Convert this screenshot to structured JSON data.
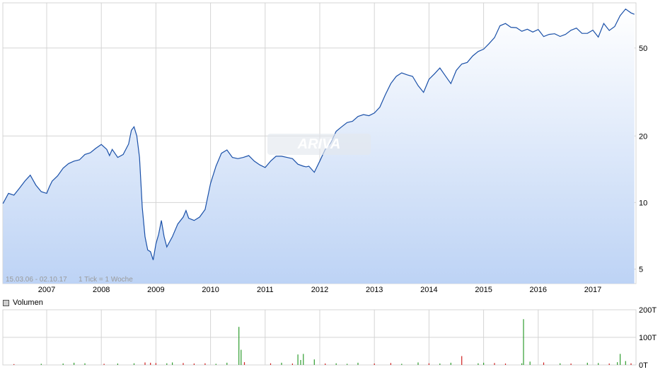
{
  "chart_data": [
    {
      "type": "area",
      "scale": "log",
      "period_label": "15.03.06 - 02.10.17",
      "interval_label": "1 Tick = 1 Woche",
      "watermark": "ARIVA",
      "x_tick_labels": [
        "2007",
        "2008",
        "2009",
        "2010",
        "2011",
        "2012",
        "2013",
        "2014",
        "2015",
        "2016",
        "2017"
      ],
      "y_tick_labels": [
        "5",
        "10",
        "20",
        "50"
      ],
      "y_ticks": [
        5,
        10,
        20,
        50
      ],
      "ylim": [
        4.3,
        80
      ],
      "xlim": [
        2006.2,
        2017.76
      ],
      "grid": true,
      "colors": {
        "line": "#1a50a8",
        "fill_top": "#ffffff",
        "fill_bottom": "#bdd3f5"
      },
      "x": [
        2006.2,
        2006.3,
        2006.4,
        2006.5,
        2006.6,
        2006.7,
        2006.8,
        2006.9,
        2007.0,
        2007.05,
        2007.1,
        2007.2,
        2007.3,
        2007.4,
        2007.5,
        2007.6,
        2007.7,
        2007.8,
        2007.9,
        2008.0,
        2008.1,
        2008.15,
        2008.2,
        2008.3,
        2008.4,
        2008.5,
        2008.55,
        2008.6,
        2008.65,
        2008.7,
        2008.75,
        2008.8,
        2008.85,
        2008.9,
        2008.95,
        2009.0,
        2009.05,
        2009.1,
        2009.15,
        2009.2,
        2009.3,
        2009.4,
        2009.5,
        2009.55,
        2009.6,
        2009.7,
        2009.8,
        2009.9,
        2010.0,
        2010.1,
        2010.2,
        2010.3,
        2010.4,
        2010.5,
        2010.6,
        2010.7,
        2010.8,
        2010.9,
        2011.0,
        2011.1,
        2011.2,
        2011.3,
        2011.4,
        2011.5,
        2011.6,
        2011.7,
        2011.75,
        2011.8,
        2011.9,
        2012.0,
        2012.1,
        2012.2,
        2012.3,
        2012.4,
        2012.5,
        2012.6,
        2012.7,
        2012.8,
        2012.9,
        2013.0,
        2013.1,
        2013.2,
        2013.3,
        2013.4,
        2013.5,
        2013.6,
        2013.7,
        2013.8,
        2013.9,
        2014.0,
        2014.1,
        2014.2,
        2014.3,
        2014.4,
        2014.5,
        2014.6,
        2014.7,
        2014.8,
        2014.9,
        2015.0,
        2015.1,
        2015.2,
        2015.3,
        2015.4,
        2015.5,
        2015.6,
        2015.7,
        2015.8,
        2015.9,
        2016.0,
        2016.1,
        2016.2,
        2016.3,
        2016.4,
        2016.5,
        2016.6,
        2016.7,
        2016.8,
        2016.9,
        2017.0,
        2017.1,
        2017.2,
        2017.3,
        2017.4,
        2017.5,
        2017.6,
        2017.7,
        2017.76
      ],
      "y": [
        9.9,
        11.0,
        10.8,
        11.6,
        12.5,
        13.3,
        12.0,
        11.2,
        11.0,
        11.8,
        12.5,
        13.2,
        14.3,
        15.0,
        15.4,
        15.6,
        16.5,
        16.8,
        17.6,
        18.3,
        17.4,
        16.3,
        17.4,
        16.0,
        16.5,
        18.4,
        21.2,
        22.0,
        20.0,
        16.0,
        9.5,
        7.0,
        6.1,
        6.0,
        5.5,
        6.5,
        7.2,
        8.3,
        7.0,
        6.3,
        7.0,
        8.0,
        8.6,
        9.2,
        8.5,
        8.3,
        8.6,
        9.3,
        12.2,
        14.6,
        16.7,
        17.3,
        16.0,
        15.8,
        16.0,
        16.3,
        15.4,
        14.8,
        14.4,
        15.4,
        16.2,
        16.2,
        16.0,
        15.8,
        14.9,
        14.6,
        14.5,
        14.6,
        13.7,
        15.4,
        17.4,
        18.6,
        21.0,
        22.0,
        23.0,
        23.3,
        24.5,
        25.0,
        24.7,
        25.4,
        27.0,
        30.7,
        34.5,
        37.2,
        38.6,
        37.8,
        37.2,
        33.8,
        31.5,
        36.1,
        38.2,
        40.6,
        37.4,
        34.5,
        39.6,
        42.3,
        43.0,
        46.0,
        48.2,
        49.4,
        52.3,
        55.7,
        63.0,
        64.5,
        62.0,
        61.8,
        59.5,
        60.8,
        59.0,
        60.6,
        56.3,
        57.6,
        58.0,
        56.4,
        57.6,
        60.1,
        61.5,
        58.2,
        58.2,
        60.2,
        56.0,
        64.5,
        60.0,
        62.5,
        70.0,
        75.0,
        72.0,
        71.0
      ]
    },
    {
      "type": "bar",
      "label": "Volumen",
      "y_tick_labels": [
        "200T",
        "100T",
        "0T"
      ],
      "y_ticks": [
        200,
        100,
        0
      ],
      "ylim": [
        0,
        200
      ],
      "colors": {
        "up": "#2f9d2f",
        "down": "#cf2020"
      },
      "x": [
        2006.4,
        2006.9,
        2007.3,
        2007.5,
        2007.7,
        2008.05,
        2008.3,
        2008.6,
        2008.8,
        2008.9,
        2009.0,
        2009.2,
        2009.3,
        2009.5,
        2009.7,
        2009.9,
        2010.1,
        2010.3,
        2010.52,
        2010.56,
        2010.62,
        2011.1,
        2011.3,
        2011.5,
        2011.6,
        2011.65,
        2011.7,
        2011.9,
        2012.1,
        2012.3,
        2012.5,
        2012.7,
        2013.0,
        2013.3,
        2013.5,
        2013.8,
        2014.0,
        2014.2,
        2014.4,
        2014.6,
        2014.9,
        2015.0,
        2015.2,
        2015.4,
        2015.7,
        2015.73,
        2015.85,
        2016.1,
        2016.4,
        2016.6,
        2016.9,
        2017.1,
        2017.3,
        2017.45,
        2017.5,
        2017.6,
        2017.7
      ],
      "values": [
        3,
        4,
        5,
        8,
        6,
        4,
        5,
        6,
        9,
        8,
        7,
        6,
        9,
        7,
        5,
        6,
        4,
        8,
        138,
        55,
        10,
        6,
        8,
        5,
        38,
        18,
        40,
        20,
        5,
        6,
        4,
        8,
        5,
        7,
        4,
        9,
        6,
        5,
        8,
        32,
        6,
        8,
        7,
        5,
        6,
        166,
        12,
        9,
        6,
        5,
        8,
        7,
        5,
        10,
        40,
        14,
        6
      ],
      "direction": [
        "r",
        "g",
        "g",
        "g",
        "g",
        "r",
        "g",
        "g",
        "r",
        "r",
        "r",
        "g",
        "g",
        "r",
        "r",
        "r",
        "g",
        "g",
        "g",
        "g",
        "r",
        "r",
        "g",
        "r",
        "g",
        "g",
        "g",
        "g",
        "r",
        "g",
        "g",
        "g",
        "r",
        "r",
        "g",
        "g",
        "r",
        "g",
        "g",
        "r",
        "g",
        "g",
        "r",
        "r",
        "g",
        "g",
        "g",
        "r",
        "g",
        "r",
        "g",
        "g",
        "r",
        "g",
        "g",
        "g",
        "r"
      ]
    }
  ],
  "volume_legend": {
    "label": "Volumen"
  }
}
